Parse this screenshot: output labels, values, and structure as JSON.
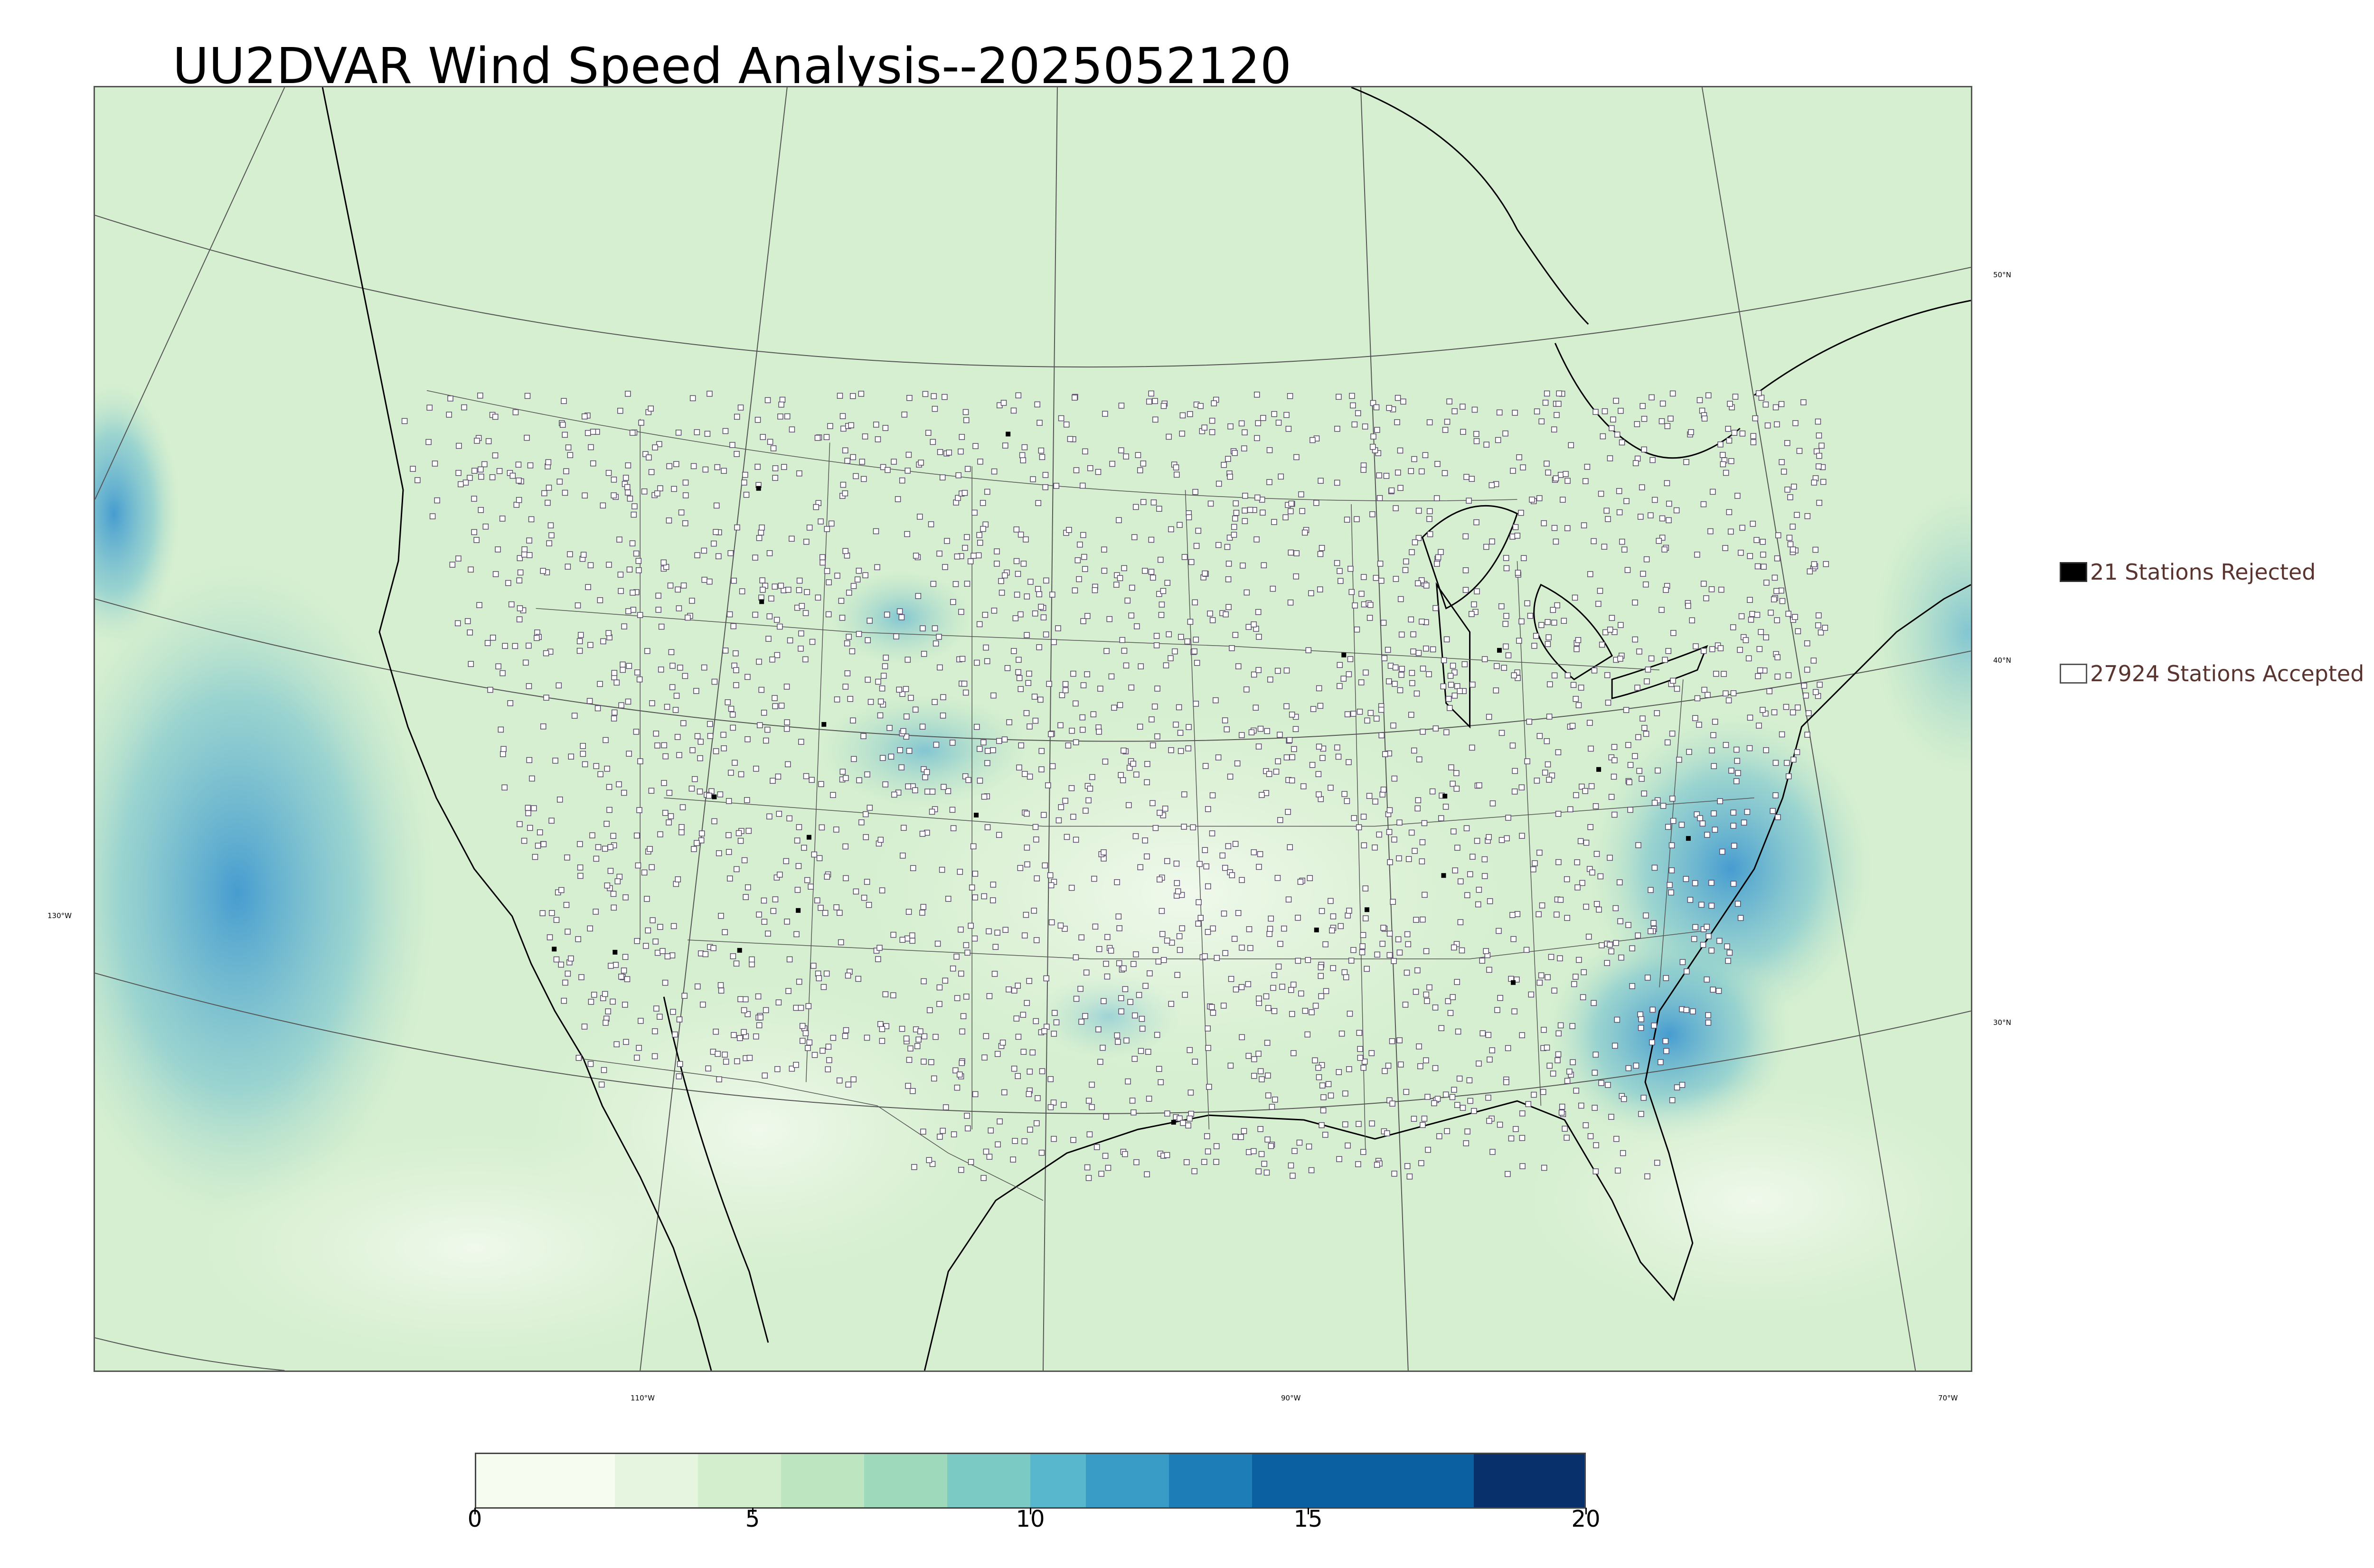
{
  "title": "UU2DVAR Wind Speed Analysis--2025052120",
  "map": {
    "lat_labels": [
      "50°N",
      "40°N",
      "30°N"
    ],
    "lon_labels": [
      "130°W",
      "110°W",
      "90°W",
      "70°W"
    ],
    "background_color": "#d9f0d3",
    "ocean_high_wind_color": "#4aa3d6",
    "coastline_color": "#000000",
    "border_color": "#444444",
    "station_accepted_style": "hollow square",
    "station_rejected_style": "filled black square"
  },
  "legend": {
    "rejected_label": "21 Stations Rejected",
    "rejected_color": "#000000",
    "accepted_label": "27924 Stations Accepted",
    "accepted_color": "#ffffff"
  },
  "colorbar": {
    "tick_labels": [
      "0",
      "5",
      "10",
      "15",
      "20"
    ],
    "min": 0,
    "max": 20,
    "colors": [
      "#f7fcf0",
      "#e5f5df",
      "#d3eecd",
      "#bde5bf",
      "#9ed9bb",
      "#7bcbc4",
      "#58b7cd",
      "#399cc6",
      "#1d7eb7",
      "#0b60a1",
      "#08306b"
    ],
    "boundaries": [
      0,
      2.5,
      4,
      5.5,
      7,
      8.5,
      10,
      11,
      12.5,
      14,
      18,
      20
    ]
  }
}
